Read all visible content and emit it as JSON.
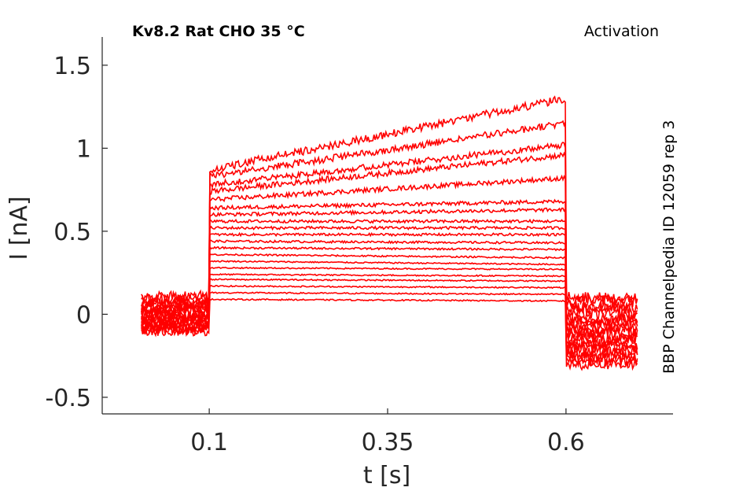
{
  "chart_data": {
    "type": "line",
    "title": "Kv8.2  Rat  CHO  35 °C",
    "subtitle": "Activation",
    "side_label": "BBP Channelpedia ID 12059 rep 3",
    "xlabel": "t [s]",
    "ylabel": "I [nA]",
    "xlim": [
      -0.05,
      0.75
    ],
    "ylim": [
      -0.6,
      1.67
    ],
    "xticks": [
      0.1,
      0.35,
      0.6
    ],
    "xtick_labels": [
      "0.1",
      "0.35",
      "0.6"
    ],
    "yticks": [
      -0.5,
      0,
      0.5,
      1,
      1.5
    ],
    "ytick_labels": [
      "-0.5",
      "0",
      "0.5",
      "1",
      "1.5"
    ],
    "grid": false,
    "line_color": "#ff0000",
    "protocol": {
      "pre_end": 0.1,
      "step_end": 0.6,
      "t_start": 0.005,
      "t_end": 0.7
    },
    "series": [
      {
        "pre": 0.11,
        "step_start": 0.87,
        "step_end": 1.3,
        "tail": 0.1
      },
      {
        "pre": 0.09,
        "step_start": 0.83,
        "step_end": 1.15,
        "tail": 0.08
      },
      {
        "pre": 0.07,
        "step_start": 0.78,
        "step_end": 1.02,
        "tail": 0.05
      },
      {
        "pre": 0.06,
        "step_start": 0.74,
        "step_end": 0.96,
        "tail": 0.03
      },
      {
        "pre": 0.05,
        "step_start": 0.69,
        "step_end": 0.82,
        "tail": 0.0
      },
      {
        "pre": 0.04,
        "step_start": 0.64,
        "step_end": 0.68,
        "tail": -0.02
      },
      {
        "pre": 0.03,
        "step_start": 0.6,
        "step_end": 0.63,
        "tail": -0.04
      },
      {
        "pre": 0.02,
        "step_start": 0.56,
        "step_end": 0.56,
        "tail": -0.06
      },
      {
        "pre": 0.01,
        "step_start": 0.52,
        "step_end": 0.52,
        "tail": -0.08
      },
      {
        "pre": 0.0,
        "step_start": 0.48,
        "step_end": 0.48,
        "tail": -0.1
      },
      {
        "pre": -0.01,
        "step_start": 0.44,
        "step_end": 0.43,
        "tail": -0.12
      },
      {
        "pre": -0.02,
        "step_start": 0.4,
        "step_end": 0.39,
        "tail": -0.14
      },
      {
        "pre": -0.03,
        "step_start": 0.36,
        "step_end": 0.34,
        "tail": -0.16
      },
      {
        "pre": -0.04,
        "step_start": 0.32,
        "step_end": 0.3,
        "tail": -0.18
      },
      {
        "pre": -0.05,
        "step_start": 0.28,
        "step_end": 0.27,
        "tail": -0.2
      },
      {
        "pre": -0.06,
        "step_start": 0.24,
        "step_end": 0.23,
        "tail": -0.22
      },
      {
        "pre": -0.07,
        "step_start": 0.21,
        "step_end": 0.2,
        "tail": -0.24
      },
      {
        "pre": -0.08,
        "step_start": 0.17,
        "step_end": 0.16,
        "tail": -0.26
      },
      {
        "pre": -0.09,
        "step_start": 0.13,
        "step_end": 0.12,
        "tail": -0.28
      },
      {
        "pre": -0.1,
        "step_start": 0.09,
        "step_end": 0.08,
        "tail": -0.3
      }
    ]
  }
}
